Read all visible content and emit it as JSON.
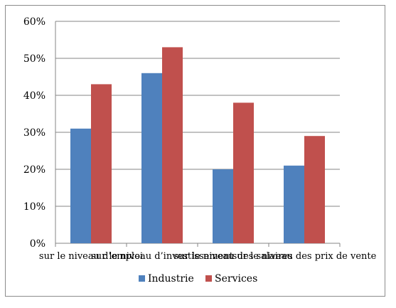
{
  "chart_data": {
    "type": "bar",
    "categories": [
      "sur le niveau d’emploi",
      "sur le niveau d’investissement",
      "sur le niveau des salaires",
      "sur le niveau des prix de vente"
    ],
    "series": [
      {
        "name": "Industrie",
        "values": [
          31,
          46,
          20,
          21
        ],
        "color": "#4f81bd"
      },
      {
        "name": "Services",
        "values": [
          43,
          53,
          38,
          29
        ],
        "color": "#c0504d"
      }
    ],
    "y_ticks": [
      "0%",
      "10%",
      "20%",
      "30%",
      "40%",
      "50%",
      "60%"
    ],
    "ylim": [
      0,
      60
    ],
    "grid": true,
    "legend_position": "bottom",
    "title": "",
    "xlabel": "",
    "ylabel": ""
  }
}
